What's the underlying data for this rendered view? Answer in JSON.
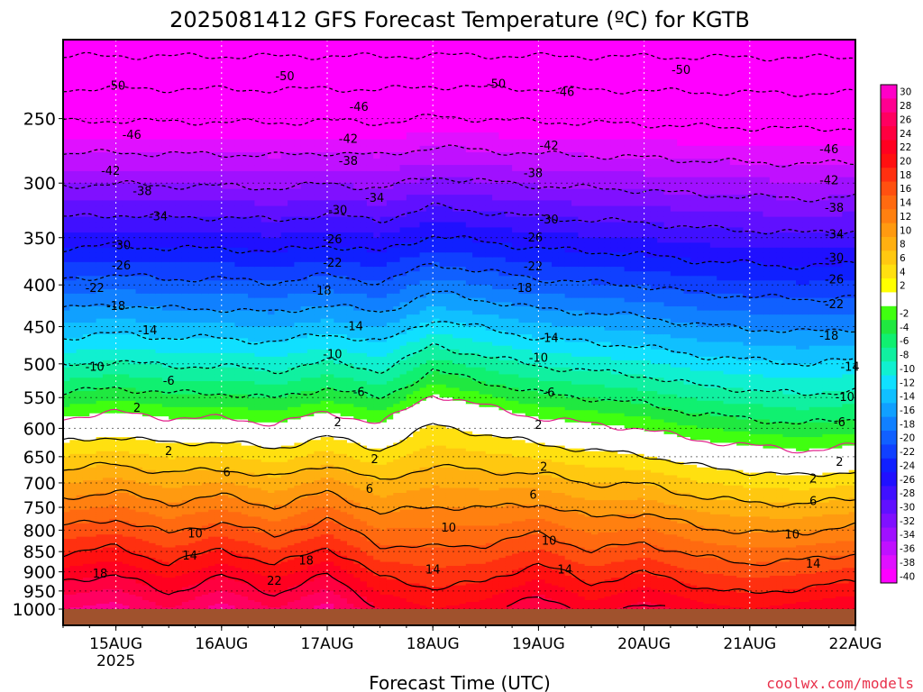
{
  "chart_data": {
    "type": "heatmap",
    "title": "2025081412 GFS Forecast Temperature (ºC) for KGTB",
    "xlabel": "Forecast Time (UTC)",
    "ylabel": "",
    "watermark": "coolwx.com/models",
    "x_ticks": [
      {
        "label": "15AUG",
        "sub": "2025"
      },
      {
        "label": "16AUG",
        "sub": ""
      },
      {
        "label": "17AUG",
        "sub": ""
      },
      {
        "label": "18AUG",
        "sub": ""
      },
      {
        "label": "19AUG",
        "sub": ""
      },
      {
        "label": "20AUG",
        "sub": ""
      },
      {
        "label": "21AUG",
        "sub": ""
      },
      {
        "label": "22AUG",
        "sub": ""
      }
    ],
    "x_range_days": [
      -0.5,
      7.0
    ],
    "y_ticks": [
      250,
      300,
      350,
      400,
      450,
      500,
      550,
      600,
      650,
      700,
      750,
      800,
      850,
      900,
      950,
      1000
    ],
    "y_range_hpa": [
      200,
      1000
    ],
    "y_scale": "log-pressure",
    "colorbar": {
      "labels": [
        30,
        28,
        26,
        24,
        22,
        20,
        18,
        16,
        14,
        12,
        10,
        8,
        6,
        4,
        2,
        -2,
        -4,
        -6,
        -8,
        -10,
        -12,
        -14,
        -16,
        -18,
        -20,
        -22,
        -24,
        -26,
        -28,
        -30,
        -32,
        -34,
        -36,
        -38,
        -40
      ],
      "colors": [
        "#ff00c8",
        "#ff0090",
        "#ff0060",
        "#ff0040",
        "#ff0020",
        "#ff1010",
        "#ff3010",
        "#ff5010",
        "#ff6a10",
        "#ff8010",
        "#ff9a10",
        "#ffb010",
        "#ffc810",
        "#ffe010",
        "#ffff00",
        "#ffffff",
        "#40ff10",
        "#20e840",
        "#10f070",
        "#10f0a0",
        "#10f0d0",
        "#10e0ff",
        "#10c0ff",
        "#10a0ff",
        "#1080ff",
        "#1060ff",
        "#1040ff",
        "#1020ff",
        "#2010ff",
        "#4010ff",
        "#6010ff",
        "#8010ff",
        "#a010ff",
        "#c010ff",
        "#e010ff",
        "#ff00ff"
      ]
    },
    "profiles": [
      {
        "day": -0.5,
        "freeze_hpa": 600,
        "t1000": 26
      },
      {
        "day": 0.0,
        "freeze_hpa": 590,
        "t1000": 27
      },
      {
        "day": 0.5,
        "freeze_hpa": 600,
        "t1000": 24
      },
      {
        "day": 1.0,
        "freeze_hpa": 600,
        "t1000": 27
      },
      {
        "day": 1.5,
        "freeze_hpa": 610,
        "t1000": 24
      },
      {
        "day": 2.0,
        "freeze_hpa": 590,
        "t1000": 27
      },
      {
        "day": 2.5,
        "freeze_hpa": 610,
        "t1000": 22
      },
      {
        "day": 3.0,
        "freeze_hpa": 560,
        "t1000": 20
      },
      {
        "day": 3.5,
        "freeze_hpa": 580,
        "t1000": 21
      },
      {
        "day": 4.0,
        "freeze_hpa": 600,
        "t1000": 24
      },
      {
        "day": 4.5,
        "freeze_hpa": 610,
        "t1000": 21
      },
      {
        "day": 5.0,
        "freeze_hpa": 620,
        "t1000": 23
      },
      {
        "day": 5.5,
        "freeze_hpa": 640,
        "t1000": 21
      },
      {
        "day": 6.0,
        "freeze_hpa": 650,
        "t1000": 20
      },
      {
        "day": 6.5,
        "freeze_hpa": 660,
        "t1000": 21
      },
      {
        "day": 7.0,
        "freeze_hpa": 650,
        "t1000": 22
      }
    ],
    "contour_labels": [
      {
        "v": "-50",
        "day": 0.0,
        "p": 228
      },
      {
        "v": "-50",
        "day": 1.6,
        "p": 222
      },
      {
        "v": "-50",
        "day": 3.6,
        "p": 227
      },
      {
        "v": "-50",
        "day": 5.35,
        "p": 218
      },
      {
        "v": "-46",
        "day": 4.25,
        "p": 232
      },
      {
        "v": "-46",
        "day": 0.15,
        "p": 262
      },
      {
        "v": "-46",
        "day": 2.3,
        "p": 242
      },
      {
        "v": "-46",
        "day": 6.75,
        "p": 273
      },
      {
        "v": "-42",
        "day": -0.05,
        "p": 290
      },
      {
        "v": "-42",
        "day": 2.2,
        "p": 265
      },
      {
        "v": "-42",
        "day": 4.1,
        "p": 270
      },
      {
        "v": "-42",
        "day": 6.75,
        "p": 298
      },
      {
        "v": "-38",
        "day": 0.25,
        "p": 307
      },
      {
        "v": "-38",
        "day": 2.2,
        "p": 282
      },
      {
        "v": "-38",
        "day": 3.95,
        "p": 292
      },
      {
        "v": "-38",
        "day": 6.8,
        "p": 322
      },
      {
        "v": "-34",
        "day": 0.4,
        "p": 330
      },
      {
        "v": "-34",
        "day": 2.45,
        "p": 313
      },
      {
        "v": "-34",
        "day": 6.8,
        "p": 347
      },
      {
        "v": "-30",
        "day": 0.05,
        "p": 358
      },
      {
        "v": "-30",
        "day": 2.1,
        "p": 324
      },
      {
        "v": "-30",
        "day": 4.1,
        "p": 333
      },
      {
        "v": "-30",
        "day": 6.8,
        "p": 371
      },
      {
        "v": "-26",
        "day": 0.05,
        "p": 379
      },
      {
        "v": "-26",
        "day": 2.05,
        "p": 352
      },
      {
        "v": "-26",
        "day": 3.95,
        "p": 350
      },
      {
        "v": "-26",
        "day": 6.8,
        "p": 394
      },
      {
        "v": "-22",
        "day": -0.2,
        "p": 404
      },
      {
        "v": "-22",
        "day": 2.05,
        "p": 376
      },
      {
        "v": "-22",
        "day": 3.95,
        "p": 380
      },
      {
        "v": "-22",
        "day": 6.8,
        "p": 423
      },
      {
        "v": "-18",
        "day": 0.0,
        "p": 425
      },
      {
        "v": "-18",
        "day": 1.95,
        "p": 407
      },
      {
        "v": "-18",
        "day": 3.85,
        "p": 404
      },
      {
        "v": "-18",
        "day": 6.75,
        "p": 462
      },
      {
        "v": "-14",
        "day": 0.3,
        "p": 455
      },
      {
        "v": "-14",
        "day": 2.25,
        "p": 450
      },
      {
        "v": "-14",
        "day": 4.1,
        "p": 465
      },
      {
        "v": "-14",
        "day": 6.95,
        "p": 505
      },
      {
        "v": "-10",
        "day": -0.2,
        "p": 505
      },
      {
        "v": "-10",
        "day": 2.05,
        "p": 487
      },
      {
        "v": "-10",
        "day": 4.0,
        "p": 492
      },
      {
        "v": "-10",
        "day": 6.9,
        "p": 550
      },
      {
        "v": "-6",
        "day": 0.5,
        "p": 525
      },
      {
        "v": "-6",
        "day": 2.3,
        "p": 542
      },
      {
        "v": "-6",
        "day": 4.1,
        "p": 543
      },
      {
        "v": "-6",
        "day": 6.85,
        "p": 590
      },
      {
        "v": "2",
        "day": 0.2,
        "p": 567
      },
      {
        "v": "2",
        "day": 2.1,
        "p": 590
      },
      {
        "v": "2",
        "day": 4.0,
        "p": 595
      },
      {
        "v": "2",
        "day": 0.5,
        "p": 640
      },
      {
        "v": "2",
        "day": 2.45,
        "p": 655
      },
      {
        "v": "2",
        "day": 4.05,
        "p": 670
      },
      {
        "v": "2",
        "day": 6.85,
        "p": 660
      },
      {
        "v": "2",
        "day": 6.6,
        "p": 692
      },
      {
        "v": "6",
        "day": 1.05,
        "p": 680
      },
      {
        "v": "6",
        "day": 2.4,
        "p": 713
      },
      {
        "v": "6",
        "day": 3.95,
        "p": 725
      },
      {
        "v": "6",
        "day": 6.6,
        "p": 738
      },
      {
        "v": "10",
        "day": 0.75,
        "p": 808
      },
      {
        "v": "10",
        "day": 3.15,
        "p": 795
      },
      {
        "v": "10",
        "day": 4.1,
        "p": 825
      },
      {
        "v": "10",
        "day": 6.4,
        "p": 810
      },
      {
        "v": "14",
        "day": 0.7,
        "p": 860
      },
      {
        "v": "14",
        "day": 3.0,
        "p": 895
      },
      {
        "v": "14",
        "day": 4.25,
        "p": 895
      },
      {
        "v": "14",
        "day": 6.6,
        "p": 880
      },
      {
        "v": "18",
        "day": -0.15,
        "p": 905
      },
      {
        "v": "18",
        "day": 1.8,
        "p": 873
      },
      {
        "v": "22",
        "day": 1.5,
        "p": 924
      }
    ]
  }
}
